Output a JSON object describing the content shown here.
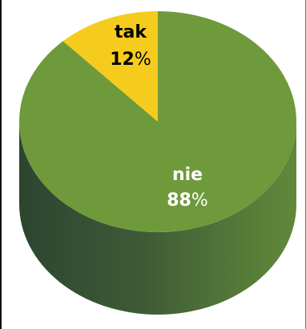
{
  "chart_data": {
    "type": "pie",
    "title": "",
    "slices": [
      {
        "label": "tak",
        "value": 12,
        "display": "12",
        "unit": "%",
        "color": "#f5cc1d",
        "label_color": "#222222"
      },
      {
        "label": "nie",
        "value": 88,
        "display": "88",
        "unit": "%",
        "color": "#6e9a3b",
        "label_color": "#ffffff"
      }
    ],
    "style": "3d-cylinder",
    "side_color": "#344d32"
  }
}
